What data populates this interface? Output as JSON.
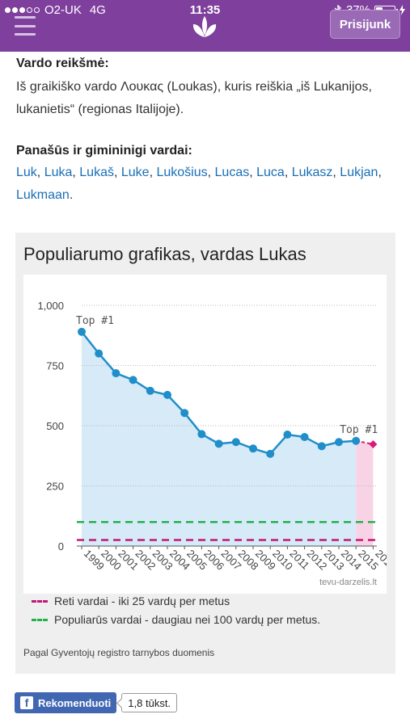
{
  "status": {
    "carrier": "O2-UK",
    "network": "4G",
    "time": "11:35",
    "battery_text": "37%",
    "battery_level": 0.37
  },
  "header": {
    "login_label": "Prisijunk",
    "color": "#7e3f9d"
  },
  "meaning": {
    "heading": "Vardo reikšmė:",
    "text": "Iš graikiško vardo Λουκας (Loukas), kuris reiškia „iš Lukanijos, lukanietis“ (regionas Italijoje)."
  },
  "similar": {
    "heading": "Panašūs ir gimininigi vardai:",
    "names": [
      "Luk",
      "Luka",
      "Lukaš",
      "Luke",
      "Lukošius",
      "Lucas",
      "Luca",
      "Lukasz",
      "Lukjan",
      "Lukmaan"
    ]
  },
  "chart_card": {
    "title": "Populiarumo grafikas, vardas Lukas",
    "watermark": "tevu-darzelis.lt",
    "legend_rare": "Reti vardai - iki 25 vardų per metus",
    "legend_popular": "Populiarūs vardai - daugiau nei 100 vardų per metus.",
    "source": "Pagal Gyventojų registro tarnybos duomenis"
  },
  "chart_data": {
    "type": "line",
    "x": [
      1999,
      2000,
      2001,
      2002,
      2003,
      2004,
      2005,
      2006,
      2007,
      2008,
      2009,
      2010,
      2011,
      2012,
      2013,
      2014,
      2015
    ],
    "series": [
      {
        "values": [
          890,
          800,
          718,
          690,
          645,
          628,
          553,
          465,
          425,
          432,
          405,
          383,
          463,
          453,
          415,
          432,
          437
        ]
      }
    ],
    "projection": {
      "x": [
        2015,
        2016
      ],
      "values": [
        437,
        423
      ]
    },
    "ylim": [
      0,
      1000
    ],
    "yticks": [
      0,
      250,
      500,
      750,
      1000
    ],
    "ytick_labels": [
      "0",
      "250",
      "500",
      "750",
      "1,000"
    ],
    "xticks": [
      1999,
      2000,
      2001,
      2002,
      2003,
      2004,
      2005,
      2006,
      2007,
      2008,
      2009,
      2010,
      2011,
      2012,
      2013,
      2014,
      2015,
      2016
    ],
    "rare_threshold": 25,
    "popular_threshold": 100,
    "annotations": [
      {
        "x": 1999,
        "y": 890,
        "text": "Top #1"
      },
      {
        "x": 2015,
        "y": 437,
        "text": "Top #1"
      }
    ],
    "colors": {
      "line": "#1f8ec9",
      "area": "#d6eaf7",
      "projection": "#d81b78",
      "projection_area": "#f8d3e5",
      "rare": "#c2187a",
      "popular": "#22b14c"
    }
  },
  "facebook": {
    "button_label": "Rekomenduoti",
    "count": "1,8 tūkst."
  }
}
